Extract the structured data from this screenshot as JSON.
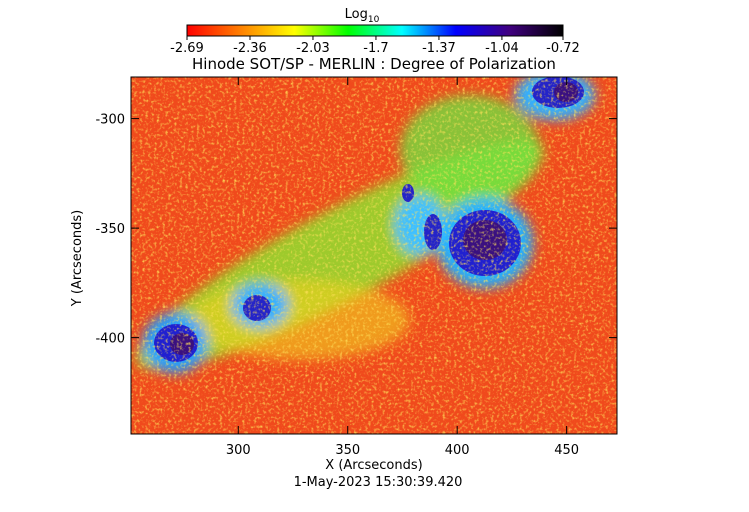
{
  "chart_data": {
    "type": "heatmap",
    "title": "Hinode SOT/SP - MERLIN : Degree of Polarization",
    "colorbar_label": "Log",
    "colorbar_label_sub": "10",
    "xlabel": "X (Arcseconds)",
    "ylabel": "Y (Arcseconds)",
    "footnote": "1-May-2023 15:30:39.420",
    "xlim": [
      251,
      473
    ],
    "ylim": [
      -444,
      -281
    ],
    "xticks": [
      300,
      350,
      400,
      450
    ],
    "yticks": [
      -300,
      -350,
      -400
    ],
    "clim": [
      -2.69,
      -0.72
    ],
    "cticks": [
      -2.69,
      -2.36,
      -2.03,
      -1.7,
      -1.37,
      -1.04,
      -0.72
    ],
    "colormap": [
      "#ff0000",
      "#ff8000",
      "#ffff00",
      "#00ff00",
      "#00ffff",
      "#0000ff",
      "#400080",
      "#000000"
    ]
  }
}
